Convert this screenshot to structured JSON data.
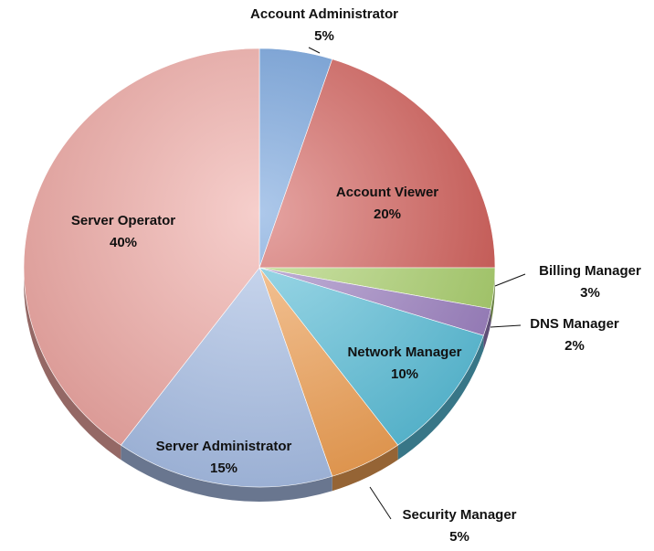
{
  "chart_data": {
    "type": "pie",
    "title": "",
    "style": "3d-tilted",
    "slices": [
      {
        "name": "Account Administrator",
        "value": 5,
        "label": "5%",
        "color": "#6a9bd8"
      },
      {
        "name": "Account Viewer",
        "value": 20,
        "label": "20%",
        "color": "#d05a55"
      },
      {
        "name": "Billing Manager",
        "value": 3,
        "label": "3%",
        "color": "#a9cf6a"
      },
      {
        "name": "DNS Manager",
        "value": 2,
        "label": "2%",
        "color": "#9b7fc0"
      },
      {
        "name": "Network Manager",
        "value": 10,
        "label": "10%",
        "color": "#5bbfd9"
      },
      {
        "name": "Security Manager",
        "value": 5,
        "label": "5%",
        "color": "#f0a155"
      },
      {
        "name": "Server Administrator",
        "value": 15,
        "label": "15%",
        "color": "#a9bfe6"
      },
      {
        "name": "Server Operator",
        "value": 40,
        "label": "40%",
        "color": "#eea7a3"
      }
    ]
  }
}
